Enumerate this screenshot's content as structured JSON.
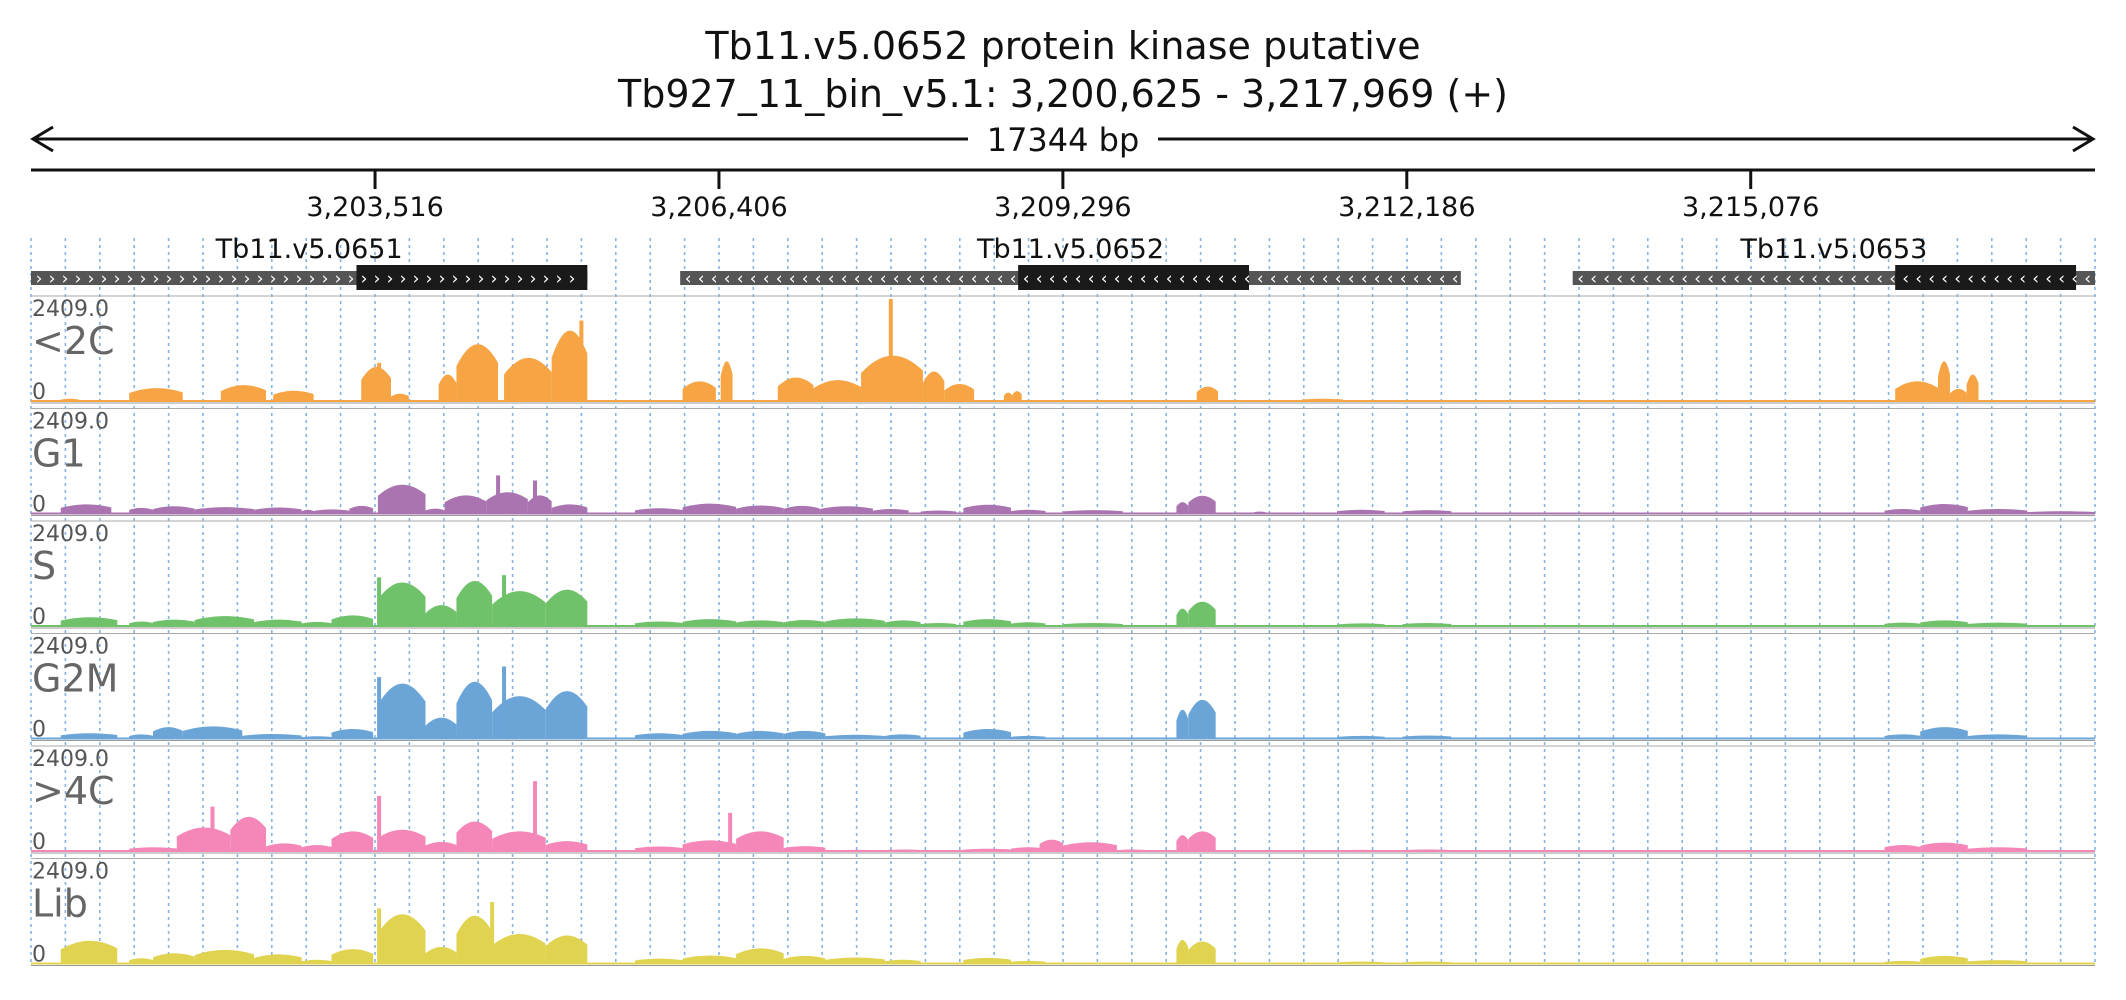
{
  "figure": {
    "title": "Tb11.v5.0652  protein kinase  putative",
    "subtitle": "Tb927_11_bin_v5.1: 3,200,625 - 3,217,969 (+)",
    "span_label": "17344 bp"
  },
  "chart_data": {
    "type": "area",
    "chromosome": "Tb927_11_bin_v5.1",
    "region": {
      "start": 3200625,
      "end": 3217969,
      "strand": "+"
    },
    "ruler": {
      "ticks": [
        3203516,
        3206406,
        3209296,
        3212186,
        3215076
      ],
      "tick_labels": [
        "3,203,516",
        "3,206,406",
        "3,209,296",
        "3,212,186",
        "3,215,076"
      ]
    },
    "genes": [
      {
        "name": "Tb11.v5.0651",
        "strand": "+",
        "start": 3200625,
        "end": 3205300,
        "cds_start": 3203360,
        "cds_end": 3205300
      },
      {
        "name": "Tb11.v5.0652",
        "strand": "-",
        "start": 3206080,
        "end": 3212640,
        "cds_start": 3208920,
        "cds_end": 3210860
      },
      {
        "name": "Tb11.v5.0653",
        "strand": "-",
        "start": 3213580,
        "end": 3217969,
        "cds_start": 3216290,
        "cds_end": 3217810
      }
    ],
    "ylim": [
      0,
      2409.0
    ],
    "y_max_label": "2409.0",
    "y_min_label": "0",
    "series": [
      {
        "name": "<2C",
        "color": "#F6A444",
        "blocks": [
          [
            3200875,
            3201025,
            60
          ],
          [
            3201450,
            3201900,
            340
          ],
          [
            3202220,
            3202600,
            420
          ],
          [
            3202660,
            3203000,
            270
          ],
          [
            3203400,
            3203650,
            900
          ],
          [
            3203650,
            3203800,
            190
          ],
          [
            3204050,
            3204200,
            700
          ],
          [
            3204200,
            3204550,
            1500
          ],
          [
            3204600,
            3205000,
            1140
          ],
          [
            3205000,
            3205300,
            1860
          ],
          [
            3206100,
            3206380,
            520
          ],
          [
            3206420,
            3206520,
            1050
          ],
          [
            3206900,
            3207200,
            620
          ],
          [
            3207200,
            3207600,
            550
          ],
          [
            3207600,
            3208120,
            1200
          ],
          [
            3208120,
            3208300,
            780
          ],
          [
            3208300,
            3208550,
            450
          ],
          [
            3208800,
            3208870,
            220
          ],
          [
            3208870,
            3208950,
            260
          ],
          [
            3210420,
            3210600,
            380
          ],
          [
            3211300,
            3211650,
            60
          ],
          [
            3216290,
            3216650,
            520
          ],
          [
            3216650,
            3216750,
            1050
          ],
          [
            3216750,
            3216890,
            320
          ],
          [
            3216890,
            3216990,
            700
          ]
        ],
        "spikes": [
          [
            3205250,
            1900
          ],
          [
            3207850,
            2409
          ],
          [
            3203550,
            900
          ]
        ]
      },
      {
        "name": "G1",
        "color": "#A974AF",
        "blocks": [
          [
            3200875,
            3201300,
            240
          ],
          [
            3201450,
            3201650,
            150
          ],
          [
            3201650,
            3202000,
            190
          ],
          [
            3202000,
            3202500,
            170
          ],
          [
            3202500,
            3202900,
            160
          ],
          [
            3202900,
            3203000,
            100
          ],
          [
            3203000,
            3203300,
            110
          ],
          [
            3203300,
            3203500,
            200
          ],
          [
            3203540,
            3203940,
            760
          ],
          [
            3203940,
            3204100,
            130
          ],
          [
            3204100,
            3204450,
            480
          ],
          [
            3204450,
            3204800,
            560
          ],
          [
            3204800,
            3205000,
            480
          ],
          [
            3205000,
            3205300,
            240
          ],
          [
            3205700,
            3206100,
            140
          ],
          [
            3206100,
            3206550,
            260
          ],
          [
            3206550,
            3206950,
            210
          ],
          [
            3206950,
            3207250,
            200
          ],
          [
            3207250,
            3207700,
            190
          ],
          [
            3207700,
            3208000,
            120
          ],
          [
            3208100,
            3208400,
            80
          ],
          [
            3208460,
            3208860,
            230
          ],
          [
            3208860,
            3209150,
            100
          ],
          [
            3209300,
            3209800,
            90
          ],
          [
            3210250,
            3210350,
            300
          ],
          [
            3210350,
            3210580,
            470
          ],
          [
            3210900,
            3211000,
            50
          ],
          [
            3211600,
            3212000,
            100
          ],
          [
            3212150,
            3212560,
            90
          ],
          [
            3216200,
            3216500,
            120
          ],
          [
            3216500,
            3216900,
            250
          ],
          [
            3216900,
            3217400,
            120
          ],
          [
            3217400,
            3217969,
            60
          ]
        ],
        "spikes": [
          [
            3204860,
            780
          ],
          [
            3204550,
            900
          ]
        ]
      },
      {
        "name": "S",
        "color": "#6FC26A",
        "blocks": [
          [
            3200875,
            3201350,
            230
          ],
          [
            3201450,
            3201650,
            120
          ],
          [
            3201650,
            3202000,
            170
          ],
          [
            3202000,
            3202500,
            260
          ],
          [
            3202500,
            3202900,
            170
          ],
          [
            3202900,
            3203150,
            110
          ],
          [
            3203150,
            3203500,
            280
          ],
          [
            3203540,
            3203940,
            1150
          ],
          [
            3203940,
            3204200,
            550
          ],
          [
            3204200,
            3204500,
            1190
          ],
          [
            3204500,
            3204950,
            920
          ],
          [
            3204950,
            3205300,
            960
          ],
          [
            3205700,
            3206100,
            120
          ],
          [
            3206100,
            3206550,
            180
          ],
          [
            3206550,
            3206950,
            150
          ],
          [
            3206950,
            3207300,
            160
          ],
          [
            3207300,
            3207800,
            200
          ],
          [
            3207800,
            3208100,
            150
          ],
          [
            3208100,
            3208400,
            80
          ],
          [
            3208460,
            3208860,
            180
          ],
          [
            3208860,
            3209150,
            100
          ],
          [
            3209300,
            3209800,
            80
          ],
          [
            3210250,
            3210350,
            460
          ],
          [
            3210350,
            3210580,
            640
          ],
          [
            3211600,
            3212000,
            70
          ],
          [
            3212150,
            3212560,
            80
          ],
          [
            3216200,
            3216500,
            90
          ],
          [
            3216500,
            3216900,
            150
          ],
          [
            3216900,
            3217400,
            90
          ]
        ],
        "spikes": [
          [
            3203550,
            1150
          ],
          [
            3204600,
            1200
          ]
        ]
      },
      {
        "name": "G2M",
        "color": "#6BA5D8",
        "blocks": [
          [
            3200875,
            3201350,
            140
          ],
          [
            3201450,
            3201650,
            110
          ],
          [
            3201650,
            3201900,
            300
          ],
          [
            3201900,
            3202400,
            320
          ],
          [
            3202400,
            3202900,
            120
          ],
          [
            3202900,
            3203150,
            60
          ],
          [
            3203150,
            3203500,
            250
          ],
          [
            3203540,
            3203940,
            1450
          ],
          [
            3203940,
            3204200,
            550
          ],
          [
            3204200,
            3204500,
            1500
          ],
          [
            3204500,
            3204950,
            1120
          ],
          [
            3204950,
            3205300,
            1250
          ],
          [
            3205700,
            3206100,
            140
          ],
          [
            3206100,
            3206550,
            200
          ],
          [
            3206550,
            3206950,
            200
          ],
          [
            3206950,
            3207300,
            200
          ],
          [
            3207300,
            3207800,
            100
          ],
          [
            3207800,
            3208100,
            110
          ],
          [
            3208460,
            3208860,
            250
          ],
          [
            3208860,
            3209150,
            70
          ],
          [
            3210250,
            3210350,
            760
          ],
          [
            3210350,
            3210580,
            1020
          ],
          [
            3211600,
            3212000,
            70
          ],
          [
            3212150,
            3212560,
            80
          ],
          [
            3216200,
            3216500,
            110
          ],
          [
            3216500,
            3216900,
            300
          ],
          [
            3216900,
            3217400,
            110
          ]
        ],
        "spikes": [
          [
            3204600,
            1700
          ],
          [
            3203550,
            1450
          ]
        ]
      },
      {
        "name": ">4C",
        "color": "#F487B7",
        "blocks": [
          [
            3200875,
            3201350,
            20
          ],
          [
            3201450,
            3201850,
            100
          ],
          [
            3201850,
            3202300,
            620
          ],
          [
            3202300,
            3202600,
            900
          ],
          [
            3202600,
            3202900,
            200
          ],
          [
            3202900,
            3203150,
            160
          ],
          [
            3203150,
            3203500,
            520
          ],
          [
            3203540,
            3203940,
            560
          ],
          [
            3203940,
            3204200,
            240
          ],
          [
            3204200,
            3204500,
            780
          ],
          [
            3204500,
            3204950,
            520
          ],
          [
            3204950,
            3205300,
            260
          ],
          [
            3205700,
            3206100,
            120
          ],
          [
            3206100,
            3206550,
            280
          ],
          [
            3206550,
            3206950,
            520
          ],
          [
            3206950,
            3207300,
            130
          ],
          [
            3207300,
            3207800,
            30
          ],
          [
            3207800,
            3208100,
            40
          ],
          [
            3208460,
            3208860,
            60
          ],
          [
            3208860,
            3209150,
            100
          ],
          [
            3209100,
            3209300,
            300
          ],
          [
            3209300,
            3209750,
            230
          ],
          [
            3209750,
            3210000,
            40
          ],
          [
            3210250,
            3210350,
            420
          ],
          [
            3210350,
            3210580,
            520
          ],
          [
            3211600,
            3212000,
            30
          ],
          [
            3212150,
            3212560,
            40
          ],
          [
            3216200,
            3216500,
            160
          ],
          [
            3216500,
            3216900,
            220
          ],
          [
            3216900,
            3217400,
            100
          ]
        ],
        "spikes": [
          [
            3204860,
            1650
          ],
          [
            3203550,
            1300
          ],
          [
            3206500,
            900
          ],
          [
            3202150,
            1050
          ]
        ]
      },
      {
        "name": "Lib",
        "color": "#E0D350",
        "blocks": [
          [
            3200875,
            3201350,
            600
          ],
          [
            3201450,
            3201650,
            140
          ],
          [
            3201650,
            3202000,
            270
          ],
          [
            3202000,
            3202500,
            360
          ],
          [
            3202500,
            3202900,
            240
          ],
          [
            3202900,
            3203150,
            100
          ],
          [
            3203150,
            3203500,
            380
          ],
          [
            3203540,
            3203940,
            1300
          ],
          [
            3203940,
            3204200,
            440
          ],
          [
            3204200,
            3204500,
            1260
          ],
          [
            3204500,
            3204950,
            780
          ],
          [
            3204950,
            3205300,
            740
          ],
          [
            3205700,
            3206100,
            130
          ],
          [
            3206100,
            3206550,
            210
          ],
          [
            3206550,
            3206950,
            400
          ],
          [
            3206950,
            3207300,
            200
          ],
          [
            3207300,
            3207800,
            160
          ],
          [
            3207800,
            3208100,
            100
          ],
          [
            3208460,
            3208860,
            150
          ],
          [
            3208860,
            3209150,
            70
          ],
          [
            3210250,
            3210350,
            620
          ],
          [
            3210350,
            3210580,
            580
          ],
          [
            3211600,
            3212000,
            50
          ],
          [
            3212150,
            3212560,
            50
          ],
          [
            3216200,
            3216500,
            70
          ],
          [
            3216500,
            3216900,
            200
          ],
          [
            3216900,
            3217400,
            90
          ]
        ],
        "spikes": [
          [
            3203550,
            1300
          ],
          [
            3204500,
            1450
          ]
        ]
      }
    ],
    "grid": {
      "vertical_dotted": true,
      "color": "#84B4E0"
    }
  }
}
